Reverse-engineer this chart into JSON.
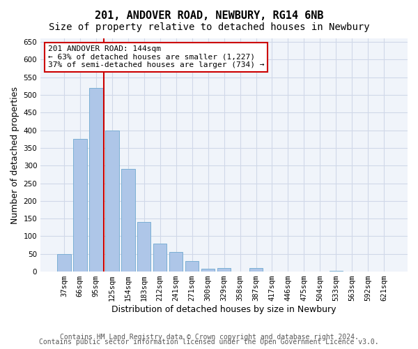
{
  "title_line1": "201, ANDOVER ROAD, NEWBURY, RG14 6NB",
  "title_line2": "Size of property relative to detached houses in Newbury",
  "xlabel": "Distribution of detached houses by size in Newbury",
  "ylabel": "Number of detached properties",
  "categories": [
    "37sqm",
    "66sqm",
    "95sqm",
    "125sqm",
    "154sqm",
    "183sqm",
    "212sqm",
    "241sqm",
    "271sqm",
    "300sqm",
    "329sqm",
    "358sqm",
    "387sqm",
    "417sqm",
    "446sqm",
    "475sqm",
    "504sqm",
    "533sqm",
    "563sqm",
    "592sqm",
    "621sqm"
  ],
  "values": [
    50,
    375,
    520,
    400,
    290,
    140,
    80,
    55,
    30,
    8,
    10,
    0,
    10,
    0,
    0,
    0,
    0,
    3,
    0,
    0,
    0
  ],
  "bar_color": "#aec6e8",
  "bar_edge_color": "#7bafd4",
  "grid_color": "#d0d8e8",
  "annotation_line_label": "201 ANDOVER ROAD: 144sqm",
  "annotation_text1": "← 63% of detached houses are smaller (1,227)",
  "annotation_text2": "37% of semi-detached houses are larger (734) →",
  "annotation_box_color": "#ffffff",
  "annotation_box_edge": "#cc0000",
  "vline_color": "#cc0000",
  "vline_x": 2.5,
  "ylim": [
    0,
    660
  ],
  "yticks": [
    0,
    50,
    100,
    150,
    200,
    250,
    300,
    350,
    400,
    450,
    500,
    550,
    600,
    650
  ],
  "footnote1": "Contains HM Land Registry data © Crown copyright and database right 2024.",
  "footnote2": "Contains public sector information licensed under the Open Government Licence v3.0.",
  "title_fontsize": 11,
  "subtitle_fontsize": 10,
  "tick_fontsize": 7.5,
  "xlabel_fontsize": 9,
  "ylabel_fontsize": 9,
  "footnote_fontsize": 7
}
